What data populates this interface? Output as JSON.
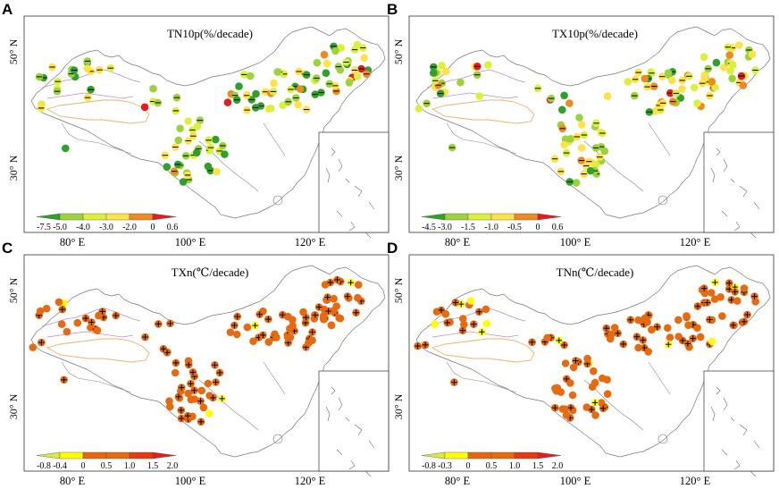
{
  "colors": {
    "dark_green": "#2fa02a",
    "light_green": "#9cd23a",
    "yellow_green": "#dcef3a",
    "yellow": "#ffe14a",
    "orange": "#f08a20",
    "dark_orange": "#e8640e",
    "red": "#e11d1d",
    "bright_yellow": "#ffff00",
    "deep_orange": "#e66a10",
    "significant_mark": "#000000"
  },
  "panels": [
    {
      "label": "A",
      "title": "TN10p(%/decade)",
      "lat_labels": [
        "50° N",
        "30° N"
      ],
      "colorbar": {
        "ticks": [
          "-7.5",
          "-5.0",
          "-4.0",
          "-3.0",
          "-2.0",
          "0",
          "0.6"
        ],
        "colors": [
          "#2fa02a",
          "#9cd23a",
          "#dcef3a",
          "#ffe14a",
          "#f08a20",
          "#e11d1d"
        ]
      },
      "station_mix": [
        "dark_green",
        "light_green",
        "yellow_green",
        "yellow",
        "orange",
        "red"
      ],
      "significance_mark": "dash"
    },
    {
      "label": "B",
      "title": "TX10p(%/decade)",
      "lat_labels": [
        "50° N",
        "30° N"
      ],
      "colorbar": {
        "ticks": [
          "-4.5",
          "-3.0",
          "-1.5",
          "-1.0",
          "-0.5",
          "0",
          "0.6"
        ],
        "colors": [
          "#2fa02a",
          "#9cd23a",
          "#dcef3a",
          "#ffe14a",
          "#f08a20",
          "#e11d1d"
        ]
      },
      "station_mix": [
        "light_green",
        "yellow_green",
        "yellow",
        "orange",
        "dark_green",
        "red"
      ],
      "significance_mark": "dash"
    },
    {
      "label": "C",
      "title": "TXn(℃/decade)",
      "lat_labels": [
        "50° N",
        "30° N"
      ],
      "lon_labels": [
        "80° E",
        "100° E",
        "120° E"
      ],
      "colorbar": {
        "ticks": [
          "-0.8",
          "-0.4",
          "0",
          "0.5",
          "1.0",
          "1.5",
          "2.0"
        ],
        "colors": [
          "#d9ea3a",
          "#ffff00",
          "#e8640e",
          "#e66a10",
          "#e33a14",
          "#e11d1d"
        ]
      },
      "station_mix": [
        "deep_orange",
        "bright_yellow"
      ],
      "significance_mark": "cross"
    },
    {
      "label": "D",
      "title": "TNn(℃/decade)",
      "lat_labels": [
        "50° N",
        "30° N"
      ],
      "lon_labels": [
        "80° E",
        "100° E",
        "120° E"
      ],
      "colorbar": {
        "ticks": [
          "-0.8",
          "-0.3",
          "0",
          "0.5",
          "1.0",
          "1.5",
          "2.0"
        ],
        "colors": [
          "#d9ea3a",
          "#ffff00",
          "#e8640e",
          "#e66a10",
          "#e33a14",
          "#e11d1d"
        ]
      },
      "station_mix": [
        "deep_orange",
        "bright_yellow"
      ],
      "significance_mark": "cross"
    }
  ],
  "shared_lon_labels": [
    "80° E",
    "100° E",
    "120° E"
  ]
}
